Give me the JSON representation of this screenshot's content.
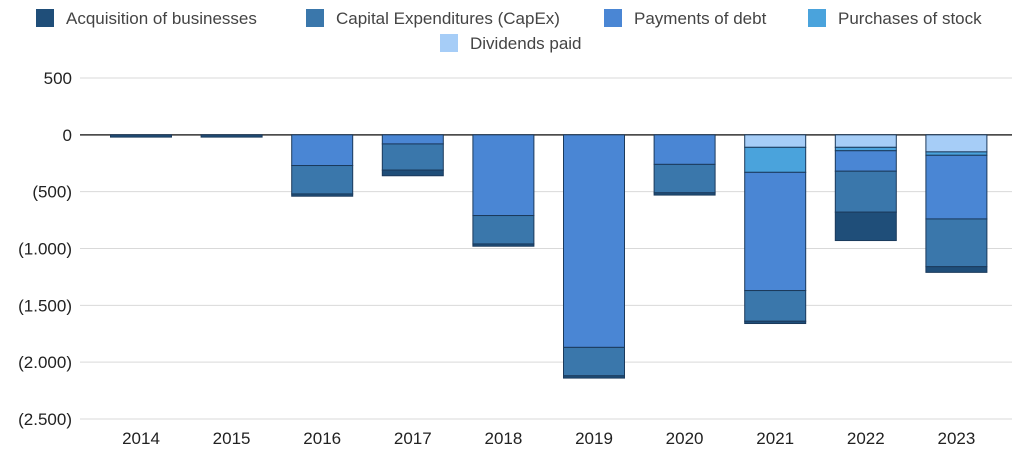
{
  "chart_data": {
    "type": "bar",
    "stacked": true,
    "title": "",
    "xlabel": "",
    "ylabel": "",
    "categories": [
      "2014",
      "2015",
      "2016",
      "2017",
      "2018",
      "2019",
      "2020",
      "2021",
      "2022",
      "2023"
    ],
    "ylim": [
      -2500,
      500
    ],
    "yticks": [
      500,
      0,
      -500,
      -1000,
      -1500,
      -2000,
      -2500
    ],
    "ytick_labels": [
      "500",
      "0",
      "(500)",
      "(1.000)",
      "(1.500)",
      "(2.000)",
      "(2.500)"
    ],
    "grid": true,
    "legend_position": "top",
    "stack_order": [
      "Dividends paid",
      "Purchases of stock",
      "Payments of debt",
      "Capital Expenditures (CapEx)",
      "Acquisition of businesses"
    ],
    "series": [
      {
        "name": "Acquisition of businesses",
        "color": "#1f4e79",
        "values": [
          -20,
          -20,
          -20,
          -50,
          -20,
          -20,
          -20,
          -20,
          -250,
          -50
        ]
      },
      {
        "name": "Capital Expenditures (CapEx)",
        "color": "#3a77ab",
        "values": [
          0,
          0,
          -250,
          -230,
          -250,
          -250,
          -250,
          -270,
          -360,
          -420
        ]
      },
      {
        "name": "Payments of debt",
        "color": "#4a86d4",
        "values": [
          0,
          0,
          -270,
          -80,
          -710,
          -1870,
          -260,
          -1040,
          -180,
          -560
        ]
      },
      {
        "name": "Purchases of stock",
        "color": "#4aa3dc",
        "values": [
          0,
          0,
          0,
          0,
          0,
          0,
          0,
          -220,
          -30,
          -30
        ]
      },
      {
        "name": "Dividends paid",
        "color": "#a6cdf7",
        "values": [
          0,
          0,
          0,
          0,
          0,
          0,
          0,
          -110,
          -110,
          -150
        ]
      }
    ]
  }
}
